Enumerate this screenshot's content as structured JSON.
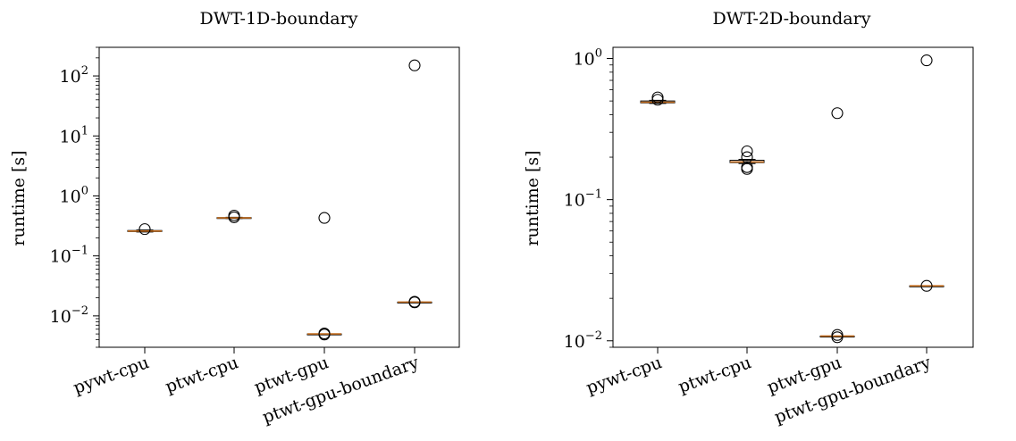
{
  "chart_data": [
    {
      "type": "box",
      "title": "DWT-1D-boundary",
      "xlabel": "",
      "ylabel": "runtime [s]",
      "yscale": "log",
      "ylim": [
        0.003,
        300
      ],
      "yticks": [
        {
          "value": 0.01,
          "base": "10",
          "exp": "−2"
        },
        {
          "value": 0.1,
          "base": "10",
          "exp": "−1"
        },
        {
          "value": 1,
          "base": "10",
          "exp": "0"
        },
        {
          "value": 10,
          "base": "10",
          "exp": "1"
        },
        {
          "value": 100,
          "base": "10",
          "exp": "2"
        }
      ],
      "categories": [
        "pywt-cpu",
        "ptwt-cpu",
        "ptwt-gpu",
        "ptwt-gpu-boundary"
      ],
      "boxes": [
        {
          "category": "pywt-cpu",
          "median": 0.26,
          "q1": 0.255,
          "q3": 0.265,
          "whisker_low": 0.25,
          "whisker_high": 0.27,
          "outliers": [
            0.28
          ]
        },
        {
          "category": "ptwt-cpu",
          "median": 0.43,
          "q1": 0.425,
          "q3": 0.435,
          "whisker_low": 0.42,
          "whisker_high": 0.44,
          "outliers": [
            0.44,
            0.47
          ]
        },
        {
          "category": "ptwt-gpu",
          "median": 0.005,
          "q1": 0.005,
          "q3": 0.005,
          "whisker_low": 0.005,
          "whisker_high": 0.005,
          "outliers": [
            0.0049,
            0.0051,
            0.43
          ]
        },
        {
          "category": "ptwt-gpu-boundary",
          "median": 0.017,
          "q1": 0.017,
          "q3": 0.017,
          "whisker_low": 0.017,
          "whisker_high": 0.017,
          "outliers": [
            0.0168,
            0.0172,
            150
          ]
        }
      ]
    },
    {
      "type": "box",
      "title": "DWT-2D-boundary",
      "xlabel": "",
      "ylabel": "runtime [s]",
      "yscale": "log",
      "ylim": [
        0.009,
        1.2
      ],
      "yticks": [
        {
          "value": 0.01,
          "base": "10",
          "exp": "−2"
        },
        {
          "value": 0.1,
          "base": "10",
          "exp": "−1"
        },
        {
          "value": 1,
          "base": "10",
          "exp": "0"
        }
      ],
      "categories": [
        "pywt-cpu",
        "ptwt-cpu",
        "ptwt-gpu",
        "ptwt-gpu-boundary"
      ],
      "boxes": [
        {
          "category": "pywt-cpu",
          "median": 0.49,
          "q1": 0.485,
          "q3": 0.5,
          "whisker_low": 0.48,
          "whisker_high": 0.505,
          "outliers": [
            0.51,
            0.53
          ]
        },
        {
          "category": "ptwt-cpu",
          "median": 0.185,
          "q1": 0.183,
          "q3": 0.19,
          "whisker_low": 0.18,
          "whisker_high": 0.193,
          "outliers": [
            0.165,
            0.17,
            0.2,
            0.22
          ]
        },
        {
          "category": "ptwt-gpu",
          "median": 0.0108,
          "q1": 0.0108,
          "q3": 0.0108,
          "whisker_low": 0.0108,
          "whisker_high": 0.0108,
          "outliers": [
            0.0106,
            0.011,
            0.41
          ]
        },
        {
          "category": "ptwt-gpu-boundary",
          "median": 0.0245,
          "q1": 0.0245,
          "q3": 0.0245,
          "whisker_low": 0.0245,
          "whisker_high": 0.0245,
          "outliers": [
            0.0245,
            0.97
          ]
        }
      ]
    }
  ]
}
